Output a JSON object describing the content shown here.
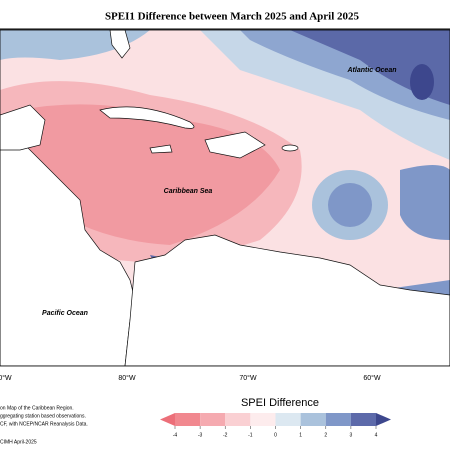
{
  "title": "SPEI1 Difference between March 2025 and April 2025",
  "map_labels": {
    "atlantic": "Atlantic Ocean",
    "caribbean": "Caribbean Sea",
    "pacific": "Pacific Ocean"
  },
  "longitude_labels": [
    "0°W",
    "80°W",
    "70°W",
    "60°W"
  ],
  "footnotes": [
    "on Map of the Caribbean Region.",
    "ggregating station based observations.",
    "CF, with NCEP/NCAR Reanalysis Data.",
    "CIMH April-2025"
  ],
  "colorbar": {
    "title": "SPEI Difference",
    "ticks": [
      -4,
      -3,
      -2,
      -1,
      0,
      1,
      2,
      3,
      4
    ],
    "colors": [
      "#ec6f79",
      "#f1888f",
      "#f5aab0",
      "#fad0d3",
      "#fdeced",
      "#dce8f1",
      "#aac2dc",
      "#7f97c8",
      "#5d6aaa",
      "#3d478d"
    ]
  }
}
